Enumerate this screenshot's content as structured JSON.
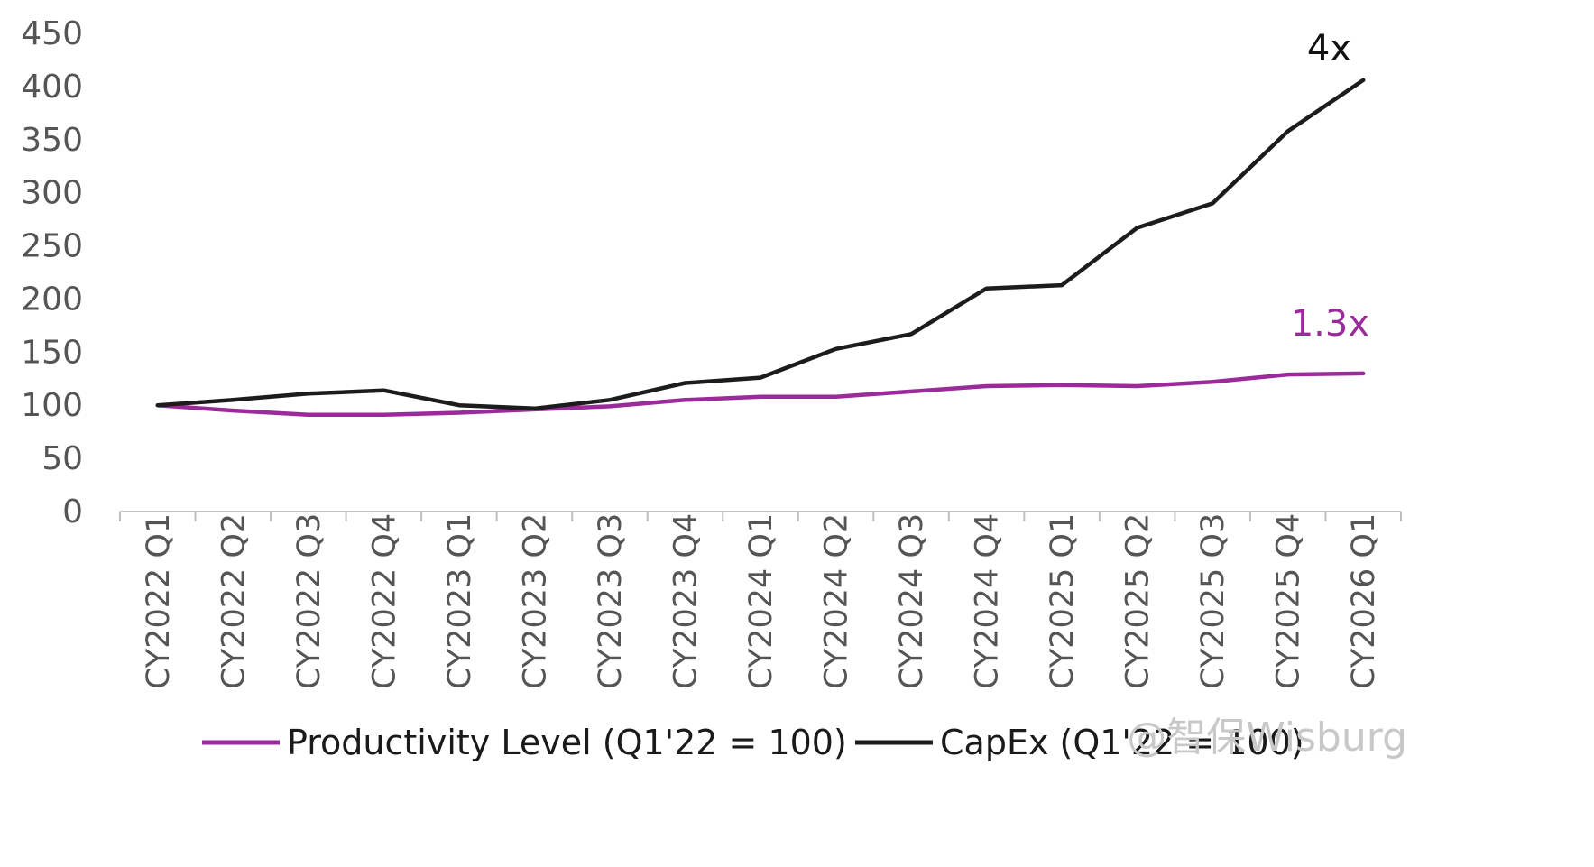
{
  "chart_data": {
    "type": "line",
    "categories": [
      "CY2022 Q1",
      "CY2022 Q2",
      "CY2022 Q3",
      "CY2022 Q4",
      "CY2023 Q1",
      "CY2023 Q2",
      "CY2023 Q3",
      "CY2023 Q4",
      "CY2024 Q1",
      "CY2024 Q2",
      "CY2024 Q3",
      "CY2024 Q4",
      "CY2025 Q1",
      "CY2025 Q2",
      "CY2025 Q3",
      "CY2025 Q4",
      "CY2026 Q1"
    ],
    "series": [
      {
        "name": "Productivity Level (Q1'22 = 100)",
        "color": "#9b2a9b",
        "values": [
          100,
          95,
          91,
          91,
          93,
          96,
          99,
          105,
          108,
          108,
          113,
          118,
          119,
          118,
          122,
          129,
          130
        ],
        "end_label": "1.3x"
      },
      {
        "name": "CapEx (Q1'22 = 100)",
        "color": "#1c1c1c",
        "values": [
          100,
          105,
          111,
          114,
          100,
          97,
          105,
          121,
          126,
          153,
          167,
          210,
          213,
          267,
          290,
          358,
          406
        ],
        "end_label": "4x"
      }
    ],
    "yticks": [
      0,
      50,
      100,
      150,
      200,
      250,
      300,
      350,
      400,
      450
    ],
    "ylim": [
      0,
      450
    ],
    "xlabel": "",
    "ylabel": "",
    "title": "",
    "grid": false,
    "legend_position": "bottom"
  },
  "watermark": "@智保Wisburg"
}
